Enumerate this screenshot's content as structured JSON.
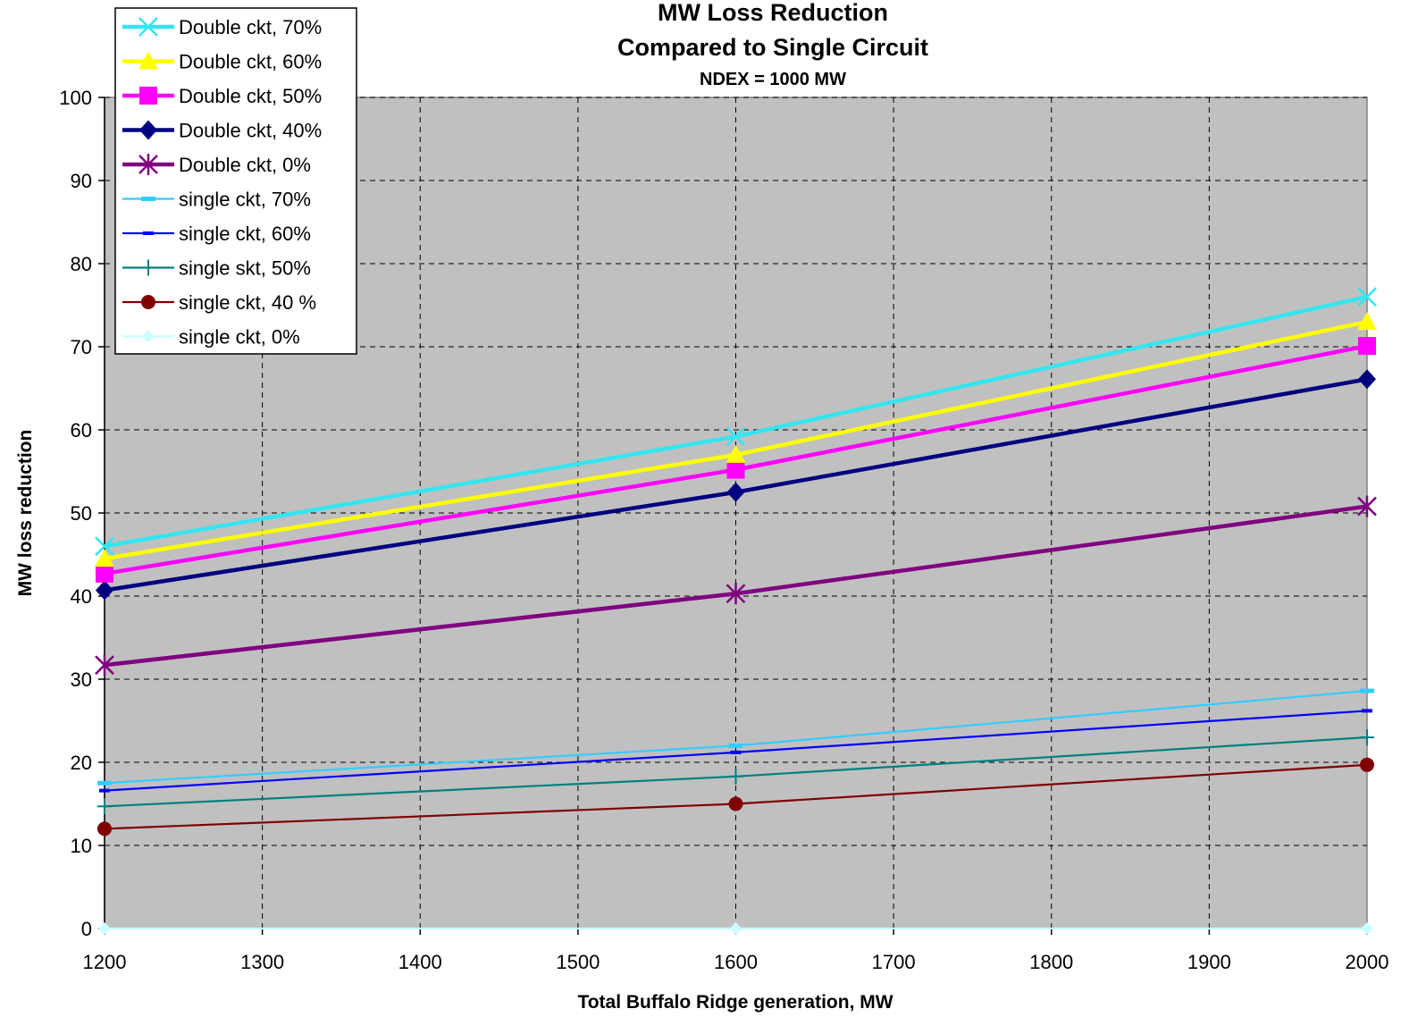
{
  "chart_data": {
    "type": "line",
    "title": "MW Loss Reduction",
    "title_line2": "Compared to Single Circuit",
    "subtitle": "NDEX = 1000 MW",
    "xlabel": "Total Buffalo Ridge generation, MW",
    "ylabel": "MW loss reduction",
    "xlim": [
      1200,
      2000
    ],
    "ylim": [
      0,
      100
    ],
    "x_ticks": [
      1200,
      1300,
      1400,
      1500,
      1600,
      1700,
      1800,
      1900,
      2000
    ],
    "y_ticks": [
      0,
      10,
      20,
      30,
      40,
      50,
      60,
      70,
      80,
      90,
      100
    ],
    "grid": true,
    "plot_background": "#c0c0c0",
    "legend_position": "top-left",
    "x": [
      1200,
      1600,
      2000
    ],
    "series": [
      {
        "name": "Double ckt, 70%",
        "values": [
          46.0,
          59.2,
          76.0
        ],
        "color": "#33e6f0",
        "marker": "x",
        "bold": true
      },
      {
        "name": "Double ckt, 60%",
        "values": [
          44.5,
          57.0,
          73.0
        ],
        "color": "#ffff00",
        "marker": "triangle",
        "bold": true
      },
      {
        "name": "Double ckt, 50%",
        "values": [
          42.7,
          55.2,
          70.1
        ],
        "color": "#ff00ff",
        "marker": "square",
        "bold": true
      },
      {
        "name": "Double ckt, 40%",
        "values": [
          40.7,
          52.5,
          66.1
        ],
        "color": "#000080",
        "marker": "diamond",
        "bold": true
      },
      {
        "name": "Double ckt, 0%",
        "values": [
          31.7,
          40.3,
          50.8
        ],
        "color": "#800080",
        "marker": "star",
        "bold": true
      },
      {
        "name": "single ckt, 70%",
        "values": [
          17.5,
          22.0,
          28.6
        ],
        "color": "#33ccff",
        "marker": "dash",
        "bold": false
      },
      {
        "name": "single ckt, 60%",
        "values": [
          16.6,
          21.2,
          26.2
        ],
        "color": "#0000ff",
        "marker": "dash-small",
        "bold": false
      },
      {
        "name": "single skt, 50%",
        "values": [
          14.7,
          18.3,
          23.0
        ],
        "color": "#008080",
        "marker": "plus",
        "bold": false
      },
      {
        "name": "single ckt, 40 %",
        "values": [
          12.0,
          15.0,
          19.7
        ],
        "color": "#800000",
        "marker": "circle",
        "bold": false
      },
      {
        "name": "single ckt, 0%",
        "values": [
          0,
          0,
          0
        ],
        "color": "#ccffff",
        "marker": "diamond-small",
        "bold": false
      }
    ]
  }
}
